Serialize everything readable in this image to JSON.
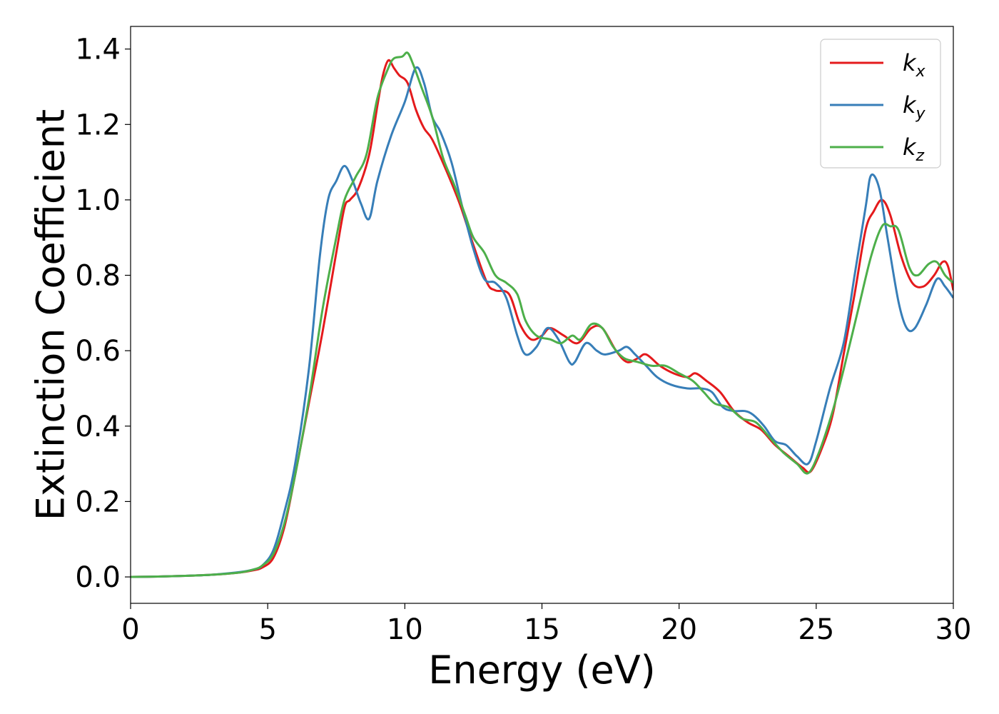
{
  "chart_data": {
    "type": "line",
    "title": "",
    "xlabel": "Energy (eV)",
    "ylabel": "Extinction Coefficient",
    "xlim": [
      0,
      30
    ],
    "ylim": [
      -0.07,
      1.46
    ],
    "xticks": [
      0,
      5,
      10,
      15,
      20,
      25,
      30
    ],
    "xtick_labels": [
      "0",
      "5",
      "10",
      "15",
      "20",
      "25",
      "30"
    ],
    "yticks": [
      0.0,
      0.2,
      0.4,
      0.6,
      0.8,
      1.0,
      1.2,
      1.4
    ],
    "ytick_labels": [
      "0.0",
      "0.2",
      "0.4",
      "0.6",
      "0.8",
      "1.0",
      "1.2",
      "1.4"
    ],
    "grid": false,
    "legend_position": "top-right",
    "series": [
      {
        "name": "k_x",
        "label_main": "k",
        "label_sub": "x",
        "color": "#e41a1c",
        "points": [
          [
            0,
            0.0
          ],
          [
            1,
            0.001
          ],
          [
            2,
            0.003
          ],
          [
            3,
            0.006
          ],
          [
            4,
            0.012
          ],
          [
            4.5,
            0.018
          ],
          [
            4.8,
            0.025
          ],
          [
            5.2,
            0.05
          ],
          [
            5.6,
            0.13
          ],
          [
            6.0,
            0.27
          ],
          [
            6.5,
            0.46
          ],
          [
            7.0,
            0.65
          ],
          [
            7.5,
            0.86
          ],
          [
            7.8,
            0.98
          ],
          [
            8.0,
            1.0
          ],
          [
            8.3,
            1.03
          ],
          [
            8.7,
            1.12
          ],
          [
            9.0,
            1.25
          ],
          [
            9.2,
            1.33
          ],
          [
            9.4,
            1.37
          ],
          [
            9.6,
            1.35
          ],
          [
            9.8,
            1.33
          ],
          [
            10.1,
            1.31
          ],
          [
            10.4,
            1.24
          ],
          [
            10.7,
            1.19
          ],
          [
            11.0,
            1.16
          ],
          [
            11.5,
            1.08
          ],
          [
            12.0,
            0.99
          ],
          [
            12.5,
            0.88
          ],
          [
            13.0,
            0.78
          ],
          [
            13.3,
            0.76
          ],
          [
            13.8,
            0.75
          ],
          [
            14.2,
            0.67
          ],
          [
            14.6,
            0.63
          ],
          [
            15.0,
            0.64
          ],
          [
            15.3,
            0.66
          ],
          [
            15.8,
            0.64
          ],
          [
            16.3,
            0.62
          ],
          [
            16.8,
            0.66
          ],
          [
            17.2,
            0.66
          ],
          [
            17.7,
            0.6
          ],
          [
            18.1,
            0.57
          ],
          [
            18.5,
            0.58
          ],
          [
            18.8,
            0.59
          ],
          [
            19.3,
            0.56
          ],
          [
            19.8,
            0.54
          ],
          [
            20.3,
            0.53
          ],
          [
            20.6,
            0.54
          ],
          [
            21.0,
            0.52
          ],
          [
            21.5,
            0.49
          ],
          [
            22.0,
            0.44
          ],
          [
            22.5,
            0.41
          ],
          [
            23.0,
            0.39
          ],
          [
            23.5,
            0.35
          ],
          [
            24.0,
            0.32
          ],
          [
            24.5,
            0.29
          ],
          [
            24.8,
            0.28
          ],
          [
            25.2,
            0.34
          ],
          [
            25.6,
            0.43
          ],
          [
            26.0,
            0.59
          ],
          [
            26.4,
            0.75
          ],
          [
            26.8,
            0.92
          ],
          [
            27.1,
            0.97
          ],
          [
            27.4,
            1.0
          ],
          [
            27.7,
            0.96
          ],
          [
            28.1,
            0.85
          ],
          [
            28.5,
            0.78
          ],
          [
            28.9,
            0.77
          ],
          [
            29.3,
            0.8
          ],
          [
            29.6,
            0.835
          ],
          [
            29.8,
            0.825
          ],
          [
            30.0,
            0.76
          ]
        ]
      },
      {
        "name": "k_y",
        "label_main": "k",
        "label_sub": "y",
        "color": "#377eb8",
        "points": [
          [
            0,
            0.0
          ],
          [
            1,
            0.001
          ],
          [
            2,
            0.003
          ],
          [
            3,
            0.006
          ],
          [
            4,
            0.013
          ],
          [
            4.5,
            0.02
          ],
          [
            4.8,
            0.03
          ],
          [
            5.2,
            0.07
          ],
          [
            5.6,
            0.17
          ],
          [
            6.0,
            0.3
          ],
          [
            6.5,
            0.55
          ],
          [
            6.9,
            0.85
          ],
          [
            7.2,
            1.0
          ],
          [
            7.5,
            1.05
          ],
          [
            7.8,
            1.09
          ],
          [
            8.1,
            1.05
          ],
          [
            8.4,
            0.99
          ],
          [
            8.7,
            0.95
          ],
          [
            9.0,
            1.05
          ],
          [
            9.5,
            1.17
          ],
          [
            10.0,
            1.26
          ],
          [
            10.4,
            1.35
          ],
          [
            10.7,
            1.31
          ],
          [
            11.0,
            1.22
          ],
          [
            11.3,
            1.18
          ],
          [
            11.7,
            1.1
          ],
          [
            12.1,
            0.98
          ],
          [
            12.5,
            0.87
          ],
          [
            12.9,
            0.79
          ],
          [
            13.3,
            0.78
          ],
          [
            13.7,
            0.74
          ],
          [
            14.1,
            0.64
          ],
          [
            14.4,
            0.59
          ],
          [
            14.8,
            0.61
          ],
          [
            15.2,
            0.66
          ],
          [
            15.6,
            0.63
          ],
          [
            16.0,
            0.57
          ],
          [
            16.2,
            0.57
          ],
          [
            16.6,
            0.62
          ],
          [
            17.0,
            0.6
          ],
          [
            17.3,
            0.59
          ],
          [
            17.8,
            0.6
          ],
          [
            18.1,
            0.61
          ],
          [
            18.4,
            0.59
          ],
          [
            18.8,
            0.56
          ],
          [
            19.2,
            0.53
          ],
          [
            19.7,
            0.51
          ],
          [
            20.3,
            0.5
          ],
          [
            20.8,
            0.5
          ],
          [
            21.2,
            0.49
          ],
          [
            21.6,
            0.45
          ],
          [
            22.0,
            0.44
          ],
          [
            22.4,
            0.44
          ],
          [
            22.7,
            0.43
          ],
          [
            23.1,
            0.4
          ],
          [
            23.5,
            0.36
          ],
          [
            23.9,
            0.35
          ],
          [
            24.3,
            0.32
          ],
          [
            24.7,
            0.3
          ],
          [
            25.0,
            0.36
          ],
          [
            25.5,
            0.5
          ],
          [
            26.0,
            0.62
          ],
          [
            26.4,
            0.8
          ],
          [
            26.8,
            0.98
          ],
          [
            27.0,
            1.065
          ],
          [
            27.3,
            1.03
          ],
          [
            27.6,
            0.9
          ],
          [
            28.0,
            0.73
          ],
          [
            28.3,
            0.66
          ],
          [
            28.6,
            0.66
          ],
          [
            29.0,
            0.72
          ],
          [
            29.4,
            0.79
          ],
          [
            29.7,
            0.77
          ],
          [
            30.0,
            0.74
          ]
        ]
      },
      {
        "name": "k_z",
        "label_main": "k",
        "label_sub": "z",
        "color": "#4daf4a",
        "points": [
          [
            0,
            0.0
          ],
          [
            1,
            0.001
          ],
          [
            2,
            0.003
          ],
          [
            3,
            0.006
          ],
          [
            4,
            0.012
          ],
          [
            4.5,
            0.02
          ],
          [
            4.8,
            0.03
          ],
          [
            5.2,
            0.06
          ],
          [
            5.6,
            0.14
          ],
          [
            6.0,
            0.27
          ],
          [
            6.5,
            0.47
          ],
          [
            7.0,
            0.71
          ],
          [
            7.5,
            0.9
          ],
          [
            7.8,
            1.0
          ],
          [
            8.2,
            1.06
          ],
          [
            8.6,
            1.12
          ],
          [
            9.0,
            1.27
          ],
          [
            9.4,
            1.35
          ],
          [
            9.6,
            1.375
          ],
          [
            9.9,
            1.38
          ],
          [
            10.1,
            1.39
          ],
          [
            10.3,
            1.36
          ],
          [
            10.6,
            1.3
          ],
          [
            11.0,
            1.22
          ],
          [
            11.4,
            1.11
          ],
          [
            11.8,
            1.04
          ],
          [
            12.2,
            0.96
          ],
          [
            12.5,
            0.9
          ],
          [
            12.9,
            0.86
          ],
          [
            13.3,
            0.8
          ],
          [
            13.7,
            0.78
          ],
          [
            14.1,
            0.75
          ],
          [
            14.4,
            0.68
          ],
          [
            14.8,
            0.64
          ],
          [
            15.3,
            0.63
          ],
          [
            15.7,
            0.62
          ],
          [
            16.1,
            0.64
          ],
          [
            16.4,
            0.63
          ],
          [
            16.8,
            0.67
          ],
          [
            17.2,
            0.66
          ],
          [
            17.6,
            0.61
          ],
          [
            18.0,
            0.58
          ],
          [
            18.5,
            0.57
          ],
          [
            19.0,
            0.56
          ],
          [
            19.5,
            0.56
          ],
          [
            20.0,
            0.54
          ],
          [
            20.5,
            0.52
          ],
          [
            20.9,
            0.49
          ],
          [
            21.3,
            0.46
          ],
          [
            21.8,
            0.45
          ],
          [
            22.3,
            0.42
          ],
          [
            22.8,
            0.41
          ],
          [
            23.3,
            0.37
          ],
          [
            23.8,
            0.33
          ],
          [
            24.3,
            0.3
          ],
          [
            24.7,
            0.275
          ],
          [
            25.1,
            0.33
          ],
          [
            25.6,
            0.44
          ],
          [
            26.0,
            0.55
          ],
          [
            26.5,
            0.7
          ],
          [
            27.0,
            0.85
          ],
          [
            27.4,
            0.93
          ],
          [
            27.7,
            0.93
          ],
          [
            28.0,
            0.92
          ],
          [
            28.4,
            0.82
          ],
          [
            28.7,
            0.8
          ],
          [
            29.1,
            0.83
          ],
          [
            29.4,
            0.835
          ],
          [
            29.7,
            0.8
          ],
          [
            30.0,
            0.78
          ]
        ]
      }
    ]
  }
}
